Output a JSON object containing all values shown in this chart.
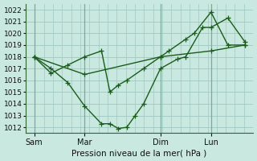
{
  "xlabel": "Pression niveau de la mer( hPa )",
  "ylim": [
    1011.5,
    1022.5
  ],
  "yticks": [
    1012,
    1013,
    1014,
    1015,
    1016,
    1017,
    1018,
    1019,
    1020,
    1021,
    1022
  ],
  "bg_color": "#c8e8e0",
  "line_color": "#1a5c1a",
  "grid_color": "#a0c8c0",
  "vline_color": "#7aaa9a",
  "x_tick_labels": [
    "Sam",
    "Mar",
    "Dim",
    "Lun"
  ],
  "x_tick_positions": [
    0,
    3,
    7.5,
    10.5
  ],
  "x_vlines": [
    0,
    3,
    7.5,
    10.5
  ],
  "xlim": [
    -0.5,
    13.0
  ],
  "line1_x": [
    0,
    1,
    2,
    3,
    4,
    4.5,
    5,
    5.5,
    6,
    6.5,
    7.5,
    8.5,
    9,
    10,
    10.5,
    11.5,
    12.5
  ],
  "line1_y": [
    1018.0,
    1017.0,
    1015.8,
    1013.8,
    1012.3,
    1012.3,
    1011.9,
    1012.0,
    1013.0,
    1014.0,
    1017.0,
    1017.8,
    1018.0,
    1020.5,
    1020.5,
    1021.3,
    1019.3
  ],
  "line2_x": [
    0,
    1,
    2,
    3,
    4,
    4.5,
    5,
    5.5,
    6.5,
    7.5,
    8,
    9,
    9.5,
    10.5,
    11.5,
    12.5
  ],
  "line2_y": [
    1018.0,
    1016.6,
    1017.3,
    1018.0,
    1018.5,
    1015.0,
    1015.6,
    1016.0,
    1017.0,
    1018.0,
    1018.5,
    1019.5,
    1020.0,
    1021.8,
    1019.0,
    1019.0
  ],
  "line3_x": [
    0,
    3,
    7.5,
    10.5,
    12.5
  ],
  "line3_y": [
    1018.0,
    1016.5,
    1018.0,
    1018.5,
    1019.0
  ]
}
